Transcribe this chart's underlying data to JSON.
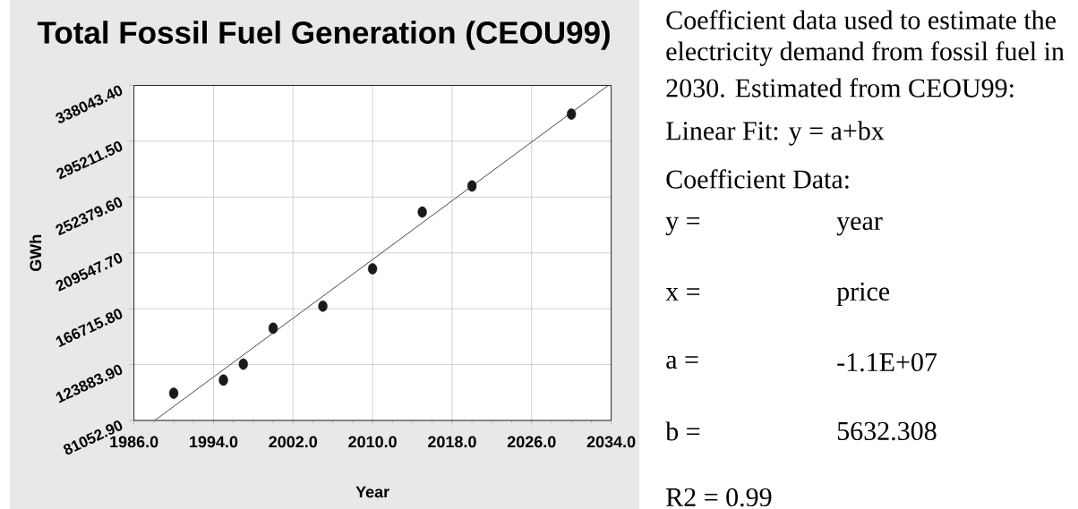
{
  "chart_data": {
    "type": "scatter",
    "title": "Total Fossil Fuel Generation (CEOU99)",
    "xlabel": "Year",
    "ylabel": "GWh",
    "xlim": [
      1986,
      2034
    ],
    "xticks": [
      {
        "value": 1986,
        "label": "1986.0"
      },
      {
        "value": 1994,
        "label": "1994.0"
      },
      {
        "value": 2002,
        "label": "2002.0"
      },
      {
        "value": 2010,
        "label": "2010.0"
      },
      {
        "value": 2018,
        "label": "2018.0"
      },
      {
        "value": 2026,
        "label": "2026.0"
      },
      {
        "value": 2034,
        "label": "2034.0"
      }
    ],
    "ylim": [
      81052.9,
      338043.4
    ],
    "yticks": [
      {
        "value": 81052.9,
        "label": "81052.90"
      },
      {
        "value": 123883.9,
        "label": "123883.90"
      },
      {
        "value": 166715.8,
        "label": "166715.80"
      },
      {
        "value": 209547.7,
        "label": "209547.70"
      },
      {
        "value": 252379.6,
        "label": "252379.60"
      },
      {
        "value": 295211.5,
        "label": "295211.50"
      },
      {
        "value": 338043.4,
        "label": "338043.40"
      }
    ],
    "grid": true,
    "series": [
      {
        "color": "#1a1a1a",
        "marker": "circle",
        "x": [
          1990,
          1995,
          1997,
          2000,
          2005,
          2010,
          2015,
          2020,
          2030
        ],
        "values": [
          101900,
          112000,
          124200,
          151800,
          168700,
          197400,
          240900,
          260900,
          316000
        ]
      },
      {
        "type": "line",
        "color": "#333333",
        "marker": "none",
        "x": [
          1988.1,
          2033.7
        ],
        "values": [
          81100,
          338000
        ]
      }
    ],
    "annotations": [
      "Coefficient data used to estimate the",
      "electricity demand from fossil fuel in",
      "2030. Estimated from CEOU99:",
      "Linear Fit: y = a+bx",
      "Coefficient Data:",
      "y =",
      "year",
      "x =",
      "price",
      "a =",
      "-1.1E+07",
      "b =",
      "5632.308",
      "R2 = 0.99"
    ]
  }
}
